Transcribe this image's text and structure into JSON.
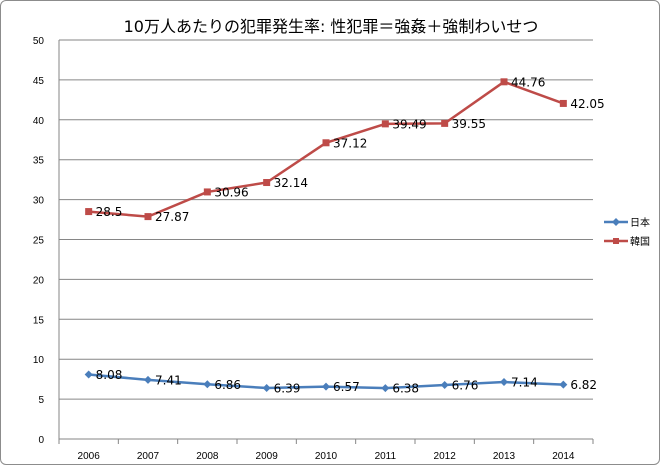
{
  "chart_data": {
    "type": "line",
    "title": "10万人あたりの犯罪発生率: 性犯罪＝強姦＋強制わいせつ",
    "categories": [
      "2006",
      "2007",
      "2008",
      "2009",
      "2010",
      "2011",
      "2012",
      "2013",
      "2014"
    ],
    "series": [
      {
        "name": "日本",
        "color": "#4a7ebb",
        "marker": "diamond",
        "values": [
          8.08,
          7.41,
          6.86,
          6.39,
          6.57,
          6.38,
          6.76,
          7.14,
          6.82
        ],
        "labels": [
          "8.08",
          "7.41",
          "6.86",
          "6.39",
          "6.57",
          "6.38",
          "6.76",
          "7.14",
          "6.82"
        ]
      },
      {
        "name": "韓国",
        "color": "#be4b48",
        "marker": "square",
        "values": [
          28.5,
          27.87,
          30.96,
          32.14,
          37.12,
          39.49,
          39.55,
          44.76,
          42.05
        ],
        "labels": [
          "28.5",
          "27.87",
          "30.96",
          "32.14",
          "37.12",
          "39.49",
          "39.55",
          "44.76",
          "42.05"
        ]
      }
    ],
    "ylim": [
      0,
      50
    ],
    "yticks": [
      "0",
      "5",
      "10",
      "15",
      "20",
      "25",
      "30",
      "35",
      "40",
      "45",
      "50"
    ],
    "grid": true,
    "legend": "right"
  }
}
